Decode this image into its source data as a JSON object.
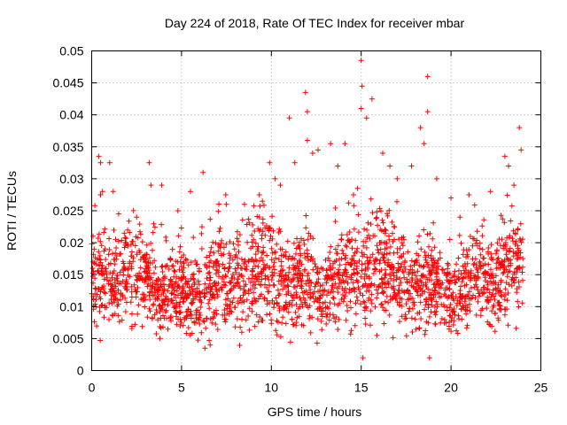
{
  "chart_data": {
    "type": "scatter",
    "title": "Day 224 of 2018, Rate Of TEC Index for receiver mbar",
    "xlabel": "GPS time / hours",
    "ylabel": "ROTI / TECUs",
    "xlim": [
      0,
      25
    ],
    "ylim": [
      0,
      0.05
    ],
    "x_ticks": [
      "0",
      "5",
      "10",
      "15",
      "20",
      "25"
    ],
    "y_ticks": [
      "0",
      "0.005",
      "0.01",
      "0.015",
      "0.02",
      "0.025",
      "0.03",
      "0.035",
      "0.04",
      "0.045",
      "0.05"
    ],
    "grid": true,
    "marker": "plus",
    "series_color": "#ff0000",
    "series": [
      {
        "name": "ROTI",
        "x_range": [
          0,
          24
        ],
        "typical_range": [
          0.005,
          0.02
        ],
        "max_value": 0.0485,
        "points": [
          [
            0.05,
            0.016
          ],
          [
            0.4,
            0.0335
          ],
          [
            0.5,
            0.0325
          ],
          [
            0.6,
            0.028
          ],
          [
            1.0,
            0.0325
          ],
          [
            1.2,
            0.028
          ],
          [
            1.5,
            0.0245
          ],
          [
            2.0,
            0.022
          ],
          [
            2.5,
            0.024
          ],
          [
            3.2,
            0.0325
          ],
          [
            3.3,
            0.029
          ],
          [
            3.9,
            0.029
          ],
          [
            4.8,
            0.025
          ],
          [
            5.5,
            0.028
          ],
          [
            6.2,
            0.031
          ],
          [
            6.3,
            0.0035
          ],
          [
            6.6,
            0.004
          ],
          [
            7.5,
            0.026
          ],
          [
            8.5,
            0.026
          ],
          [
            9.5,
            0.0265
          ],
          [
            9.9,
            0.0325
          ],
          [
            10.2,
            0.03
          ],
          [
            10.5,
            0.029
          ],
          [
            11.0,
            0.0395
          ],
          [
            11.3,
            0.0325
          ],
          [
            11.9,
            0.0435
          ],
          [
            12.0,
            0.0405
          ],
          [
            12.0,
            0.036
          ],
          [
            12.3,
            0.034
          ],
          [
            12.6,
            0.0345
          ],
          [
            13.3,
            0.0355
          ],
          [
            13.7,
            0.032
          ],
          [
            14.1,
            0.0355
          ],
          [
            14.8,
            0.0285
          ],
          [
            15.0,
            0.0485
          ],
          [
            15.05,
            0.0445
          ],
          [
            15.0,
            0.041
          ],
          [
            15.1,
            0.002
          ],
          [
            15.3,
            0.0395
          ],
          [
            15.6,
            0.0425
          ],
          [
            16.2,
            0.034
          ],
          [
            16.6,
            0.032
          ],
          [
            17.0,
            0.03
          ],
          [
            17.8,
            0.032
          ],
          [
            18.3,
            0.038
          ],
          [
            18.5,
            0.0355
          ],
          [
            18.7,
            0.046
          ],
          [
            18.7,
            0.0405
          ],
          [
            18.8,
            0.002
          ],
          [
            19.2,
            0.03
          ],
          [
            20.0,
            0.027
          ],
          [
            20.5,
            0.024
          ],
          [
            21.0,
            0.0275
          ],
          [
            22.2,
            0.028
          ],
          [
            23.0,
            0.0335
          ],
          [
            23.2,
            0.032
          ],
          [
            23.5,
            0.029
          ],
          [
            23.8,
            0.038
          ],
          [
            23.9,
            0.0345
          ],
          [
            24.0,
            0.0175
          ]
        ]
      }
    ]
  }
}
